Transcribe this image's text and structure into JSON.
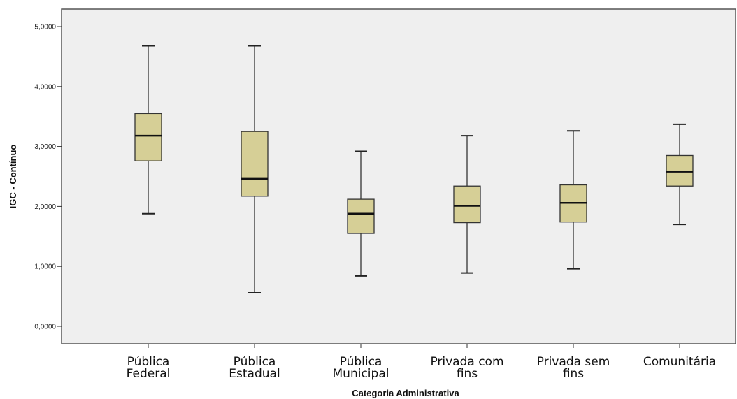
{
  "chart_data": {
    "type": "boxplot",
    "title": "",
    "xlabel": "Categoria Administrativa",
    "ylabel": "IGC - Contínuo",
    "ylim": [
      0,
      5
    ],
    "yticks": [
      "0,0000",
      "1,0000",
      "2,0000",
      "3,0000",
      "4,0000",
      "5,0000"
    ],
    "grid": false,
    "box_color": "#d6cf96",
    "plot_background": "#efefef",
    "categories": [
      {
        "label": [
          "Pública",
          "Federal"
        ],
        "min": 1.88,
        "q1": 2.76,
        "median": 3.18,
        "q3": 3.55,
        "max": 4.68
      },
      {
        "label": [
          "Pública",
          "Estadual"
        ],
        "min": 0.56,
        "q1": 2.17,
        "median": 2.46,
        "q3": 3.25,
        "max": 4.68
      },
      {
        "label": [
          "Pública",
          "Municipal"
        ],
        "min": 0.84,
        "q1": 1.55,
        "median": 1.88,
        "q3": 2.12,
        "max": 2.92
      },
      {
        "label": [
          "Privada com",
          "fins"
        ],
        "min": 0.89,
        "q1": 1.73,
        "median": 2.01,
        "q3": 2.34,
        "max": 3.18
      },
      {
        "label": [
          "Privada sem",
          "fins"
        ],
        "min": 0.96,
        "q1": 1.74,
        "median": 2.06,
        "q3": 2.36,
        "max": 3.26
      },
      {
        "label": [
          "Comunitária"
        ],
        "min": 1.7,
        "q1": 2.34,
        "median": 2.58,
        "q3": 2.85,
        "max": 3.37
      }
    ]
  }
}
